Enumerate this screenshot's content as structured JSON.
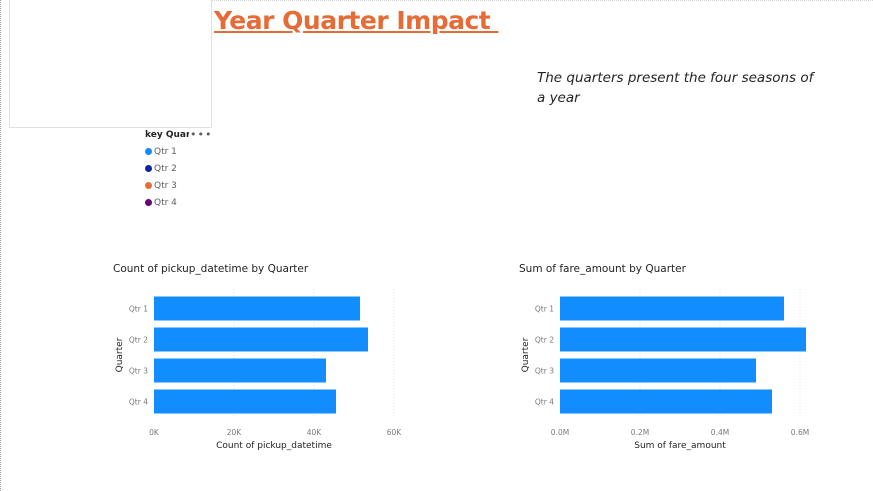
{
  "report": {
    "title": "Year Quarter Impact ",
    "note": "The quarters present the four seasons of a year"
  },
  "legend": {
    "title": "key Quart",
    "more_icon": "ellipsis-icon",
    "items": [
      {
        "label": "Qtr 1",
        "color": "#118dff"
      },
      {
        "label": "Qtr 2",
        "color": "#12239e"
      },
      {
        "label": "Qtr 3",
        "color": "#e66c37"
      },
      {
        "label": "Qtr 4",
        "color": "#6b007b"
      }
    ]
  },
  "colors": {
    "title": "#e66c37",
    "bar": "#118dff"
  },
  "chart_data": [
    {
      "type": "bar",
      "orientation": "horizontal",
      "title": "Count of pickup_datetime by Quarter",
      "xlabel": "Count of pickup_datetime",
      "ylabel": "Quarter",
      "categories": [
        "Qtr 1",
        "Qtr 2",
        "Qtr 3",
        "Qtr 4"
      ],
      "values": [
        51500,
        53500,
        43000,
        45500
      ],
      "xlim": [
        0,
        60000
      ],
      "ticks": [
        0,
        20000,
        40000,
        60000
      ],
      "tick_labels": [
        "0K",
        "20K",
        "40K",
        "60K"
      ],
      "grid": true
    },
    {
      "type": "bar",
      "orientation": "horizontal",
      "title": "Sum of fare_amount by Quarter",
      "xlabel": "Sum of fare_amount",
      "ylabel": "Quarter",
      "categories": [
        "Qtr 1",
        "Qtr 2",
        "Qtr 3",
        "Qtr 4"
      ],
      "values": [
        560000,
        615000,
        490000,
        530000
      ],
      "xlim": [
        0,
        600000
      ],
      "ticks": [
        0,
        200000,
        400000,
        600000
      ],
      "tick_labels": [
        "0.0M",
        "0.2M",
        "0.4M",
        "0.6M"
      ],
      "grid": true
    }
  ]
}
